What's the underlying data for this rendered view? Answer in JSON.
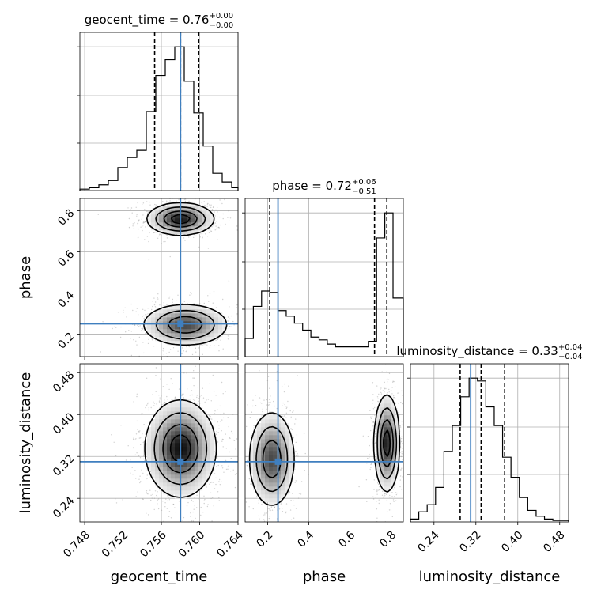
{
  "colors": {
    "truth": "#3f7fbf",
    "hist": "#000000",
    "grid": "#b0b0b0",
    "scatter": "#9a9a9a"
  },
  "chart_data": [
    {
      "type": "histogram",
      "parameter": "geocent_time",
      "title": {
        "prefix": "geocent_time = 0.76",
        "sup": "+0.00",
        "sub": "−0.00"
      },
      "xlim": [
        0.7475,
        0.764
      ],
      "truth": 0.758,
      "quantiles": [
        0.7553,
        0.758,
        0.7599
      ],
      "bin_edges": [
        0.7475,
        0.74849,
        0.74948,
        0.75047,
        0.75146,
        0.75245,
        0.75344,
        0.75443,
        0.75542,
        0.75641,
        0.7574,
        0.75839,
        0.75938,
        0.76037,
        0.76136,
        0.76235,
        0.76334,
        0.764
      ],
      "counts": [
        1,
        2,
        4,
        7,
        16,
        23,
        28,
        55,
        80,
        91,
        100,
        76,
        54,
        31,
        12,
        6,
        2
      ]
    },
    {
      "type": "histogram",
      "parameter": "phase",
      "title": {
        "prefix": "phase = 0.72",
        "sup": "+0.06",
        "sub": "−0.51"
      },
      "xlim": [
        0.09,
        0.86
      ],
      "truth": 0.25,
      "quantiles": [
        0.21,
        0.72,
        0.78
      ],
      "bin_edges": [
        0.09,
        0.13,
        0.17,
        0.21,
        0.25,
        0.29,
        0.33,
        0.37,
        0.41,
        0.45,
        0.49,
        0.53,
        0.57,
        0.61,
        0.65,
        0.69,
        0.73,
        0.77,
        0.81,
        0.86
      ],
      "counts": [
        13,
        36,
        47,
        46,
        33,
        29,
        24,
        19,
        14,
        12,
        9,
        7,
        7,
        7,
        7,
        11,
        85,
        103,
        42
      ]
    },
    {
      "type": "histogram",
      "parameter": "luminosity_distance",
      "title": {
        "prefix": "luminosity_distance = 0.33",
        "sup": "+0.04",
        "sub": "−0.04"
      },
      "xlim": [
        0.195,
        0.497
      ],
      "truth": 0.31,
      "quantiles": [
        0.29,
        0.33,
        0.375
      ],
      "bin_edges": [
        0.195,
        0.211,
        0.227,
        0.243,
        0.259,
        0.275,
        0.291,
        0.307,
        0.323,
        0.339,
        0.355,
        0.371,
        0.387,
        0.403,
        0.419,
        0.435,
        0.451,
        0.467,
        0.483,
        0.497
      ],
      "counts": [
        2,
        7,
        12,
        24,
        49,
        67,
        87,
        100,
        98,
        80,
        67,
        45,
        31,
        17,
        8,
        4,
        2,
        1,
        1
      ]
    },
    {
      "type": "scatter-contour",
      "x": "geocent_time",
      "y": "phase",
      "xlim": [
        0.7475,
        0.764
      ],
      "ylim": [
        0.09,
        0.86
      ],
      "truth": [
        0.758,
        0.25
      ],
      "modes": [
        {
          "center": [
            0.758,
            0.76
          ],
          "sigma": [
            0.0017,
            0.038
          ],
          "weight": 0.55
        },
        {
          "center": [
            0.7585,
            0.245
          ],
          "sigma": [
            0.0022,
            0.05
          ],
          "weight": 0.45
        }
      ]
    },
    {
      "type": "scatter-contour",
      "x": "geocent_time",
      "y": "luminosity_distance",
      "xlim": [
        0.7475,
        0.764
      ],
      "ylim": [
        0.195,
        0.497
      ],
      "truth": [
        0.758,
        0.31
      ],
      "modes": [
        {
          "center": [
            0.758,
            0.335
          ],
          "sigma": [
            0.0018,
            0.045
          ],
          "weight": 1
        }
      ]
    },
    {
      "type": "scatter-contour",
      "x": "phase",
      "y": "luminosity_distance",
      "xlim": [
        0.09,
        0.86
      ],
      "ylim": [
        0.195,
        0.497
      ],
      "truth": [
        0.25,
        0.31
      ],
      "modes": [
        {
          "center": [
            0.22,
            0.315
          ],
          "sigma": [
            0.055,
            0.045
          ],
          "weight": 0.45
        },
        {
          "center": [
            0.78,
            0.345
          ],
          "sigma": [
            0.03,
            0.045
          ],
          "weight": 0.55
        }
      ]
    }
  ],
  "axes": {
    "geocent_time": {
      "label": "geocent_time",
      "ticks": [
        0.748,
        0.752,
        0.756,
        0.76,
        0.764
      ],
      "tick_labels": [
        "0.748",
        "0.752",
        "0.756",
        "0.760",
        "0.764"
      ]
    },
    "phase": {
      "label": "phase",
      "ticks": [
        0.2,
        0.4,
        0.6,
        0.8
      ],
      "tick_labels": [
        "0.2",
        "0.4",
        "0.6",
        "0.8"
      ]
    },
    "luminosity_distance": {
      "label": "luminosity_distance",
      "ticks": [
        0.24,
        0.32,
        0.4,
        0.48
      ],
      "tick_labels": [
        "0.24",
        "0.32",
        "0.40",
        "0.48"
      ]
    }
  }
}
